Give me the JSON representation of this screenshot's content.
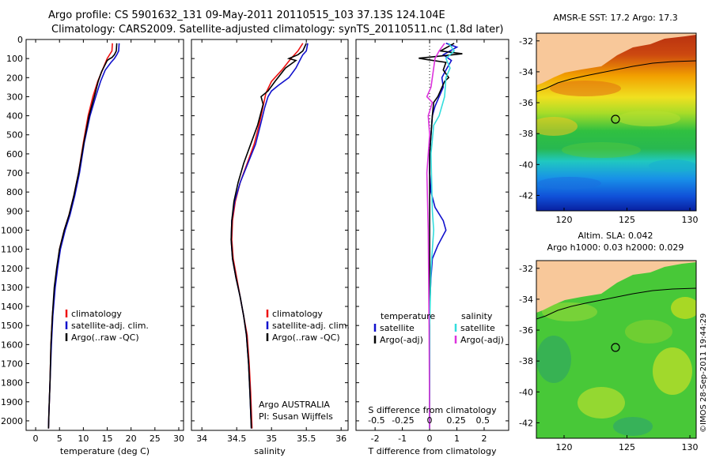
{
  "header": {
    "line1": "Argo profile: CS 5901632_131 09-May-2011 20110515_103 37.13S 124.104E",
    "line2": "Climatology: CARS2009. Satellite-adjusted climatology: synTS_20110511.nc (1.8d later)"
  },
  "colors": {
    "climatology": "#ee1111",
    "satellite": "#1111cc",
    "argo": "#000000",
    "s_satellite": "#33dddd",
    "s_argo": "#dd33dd",
    "land": "#f8c89a"
  },
  "chart_data": [
    {
      "id": "temperature",
      "type": "line",
      "xlabel": "temperature (deg C)",
      "ylabel": "",
      "xlim": [
        -2,
        31
      ],
      "ylim": [
        2050,
        0
      ],
      "xticks": [
        "0",
        "5",
        "10",
        "15",
        "20",
        "25",
        "30"
      ],
      "yticks": [
        "0",
        "100",
        "200",
        "300",
        "400",
        "500",
        "600",
        "700",
        "800",
        "900",
        "1000",
        "1100",
        "1200",
        "1300",
        "1400",
        "1500",
        "1600",
        "1700",
        "1800",
        "1900",
        "2000"
      ],
      "legend": [
        "climatology",
        "satellite-adj. clim.",
        "Argo(..raw -QC)"
      ],
      "series": [
        {
          "name": "climatology",
          "color": "#ee1111",
          "points": [
            [
              16.1,
              20
            ],
            [
              16.0,
              60
            ],
            [
              15.0,
              100
            ],
            [
              14.0,
              160
            ],
            [
              13.0,
              220
            ],
            [
              12.0,
              300
            ],
            [
              11.0,
              400
            ],
            [
              10.0,
              540
            ],
            [
              9.0,
              700
            ],
            [
              8.0,
              820
            ],
            [
              7.0,
              920
            ],
            [
              6.0,
              1000
            ],
            [
              5.0,
              1100
            ],
            [
              4.5,
              1200
            ],
            [
              4.0,
              1300
            ],
            [
              3.5,
              1450
            ],
            [
              3.2,
              1600
            ],
            [
              3.0,
              1800
            ],
            [
              2.8,
              1950
            ],
            [
              2.7,
              2040
            ]
          ]
        },
        {
          "name": "satellite-adj. clim.",
          "color": "#1111cc",
          "points": [
            [
              17.5,
              20
            ],
            [
              17.4,
              60
            ],
            [
              17.0,
              80
            ],
            [
              16.5,
              100
            ],
            [
              15.8,
              120
            ],
            [
              14.6,
              160
            ],
            [
              13.6,
              220
            ],
            [
              12.6,
              300
            ],
            [
              11.4,
              400
            ],
            [
              10.2,
              540
            ],
            [
              9.2,
              700
            ],
            [
              8.2,
              820
            ],
            [
              7.2,
              920
            ],
            [
              6.2,
              1000
            ],
            [
              5.2,
              1100
            ],
            [
              4.6,
              1200
            ],
            [
              4.1,
              1300
            ],
            [
              3.6,
              1450
            ],
            [
              3.3,
              1600
            ],
            [
              3.0,
              1800
            ],
            [
              2.8,
              1950
            ],
            [
              2.7,
              2040
            ]
          ]
        },
        {
          "name": "Argo(..raw -QC)",
          "color": "#000000",
          "points": [
            [
              17.0,
              20
            ],
            [
              16.9,
              60
            ],
            [
              16.5,
              80
            ],
            [
              16.0,
              95
            ],
            [
              15.6,
              100
            ],
            [
              15.0,
              110
            ],
            [
              14.4,
              140
            ],
            [
              13.8,
              170
            ],
            [
              13.1,
              220
            ],
            [
              12.3,
              300
            ],
            [
              11.2,
              400
            ],
            [
              10.1,
              540
            ],
            [
              9.0,
              700
            ],
            [
              8.0,
              820
            ],
            [
              7.0,
              920
            ],
            [
              6.0,
              1000
            ],
            [
              5.0,
              1100
            ],
            [
              4.4,
              1200
            ],
            [
              3.9,
              1300
            ],
            [
              3.5,
              1450
            ],
            [
              3.2,
              1600
            ],
            [
              3.0,
              1800
            ],
            [
              2.8,
              1950
            ],
            [
              2.7,
              2040
            ]
          ]
        }
      ]
    },
    {
      "id": "salinity",
      "type": "line",
      "xlabel": "salinity",
      "xlim": [
        33.85,
        36.1
      ],
      "ylim": [
        2050,
        0
      ],
      "xticks": [
        "34",
        "34.5",
        "35",
        "35.5",
        "36"
      ],
      "legend": [
        "climatology",
        "satellite-adj. clim.",
        "Argo(..raw -QC)"
      ],
      "annotations": [
        "Argo AUSTRALIA",
        "PI: Susan Wijffels"
      ],
      "series": [
        {
          "name": "climatology",
          "color": "#ee1111",
          "points": [
            [
              35.45,
              20
            ],
            [
              35.38,
              60
            ],
            [
              35.28,
              100
            ],
            [
              35.15,
              160
            ],
            [
              35.0,
              220
            ],
            [
              34.92,
              280
            ],
            [
              34.88,
              350
            ],
            [
              34.82,
              450
            ],
            [
              34.75,
              550
            ],
            [
              34.65,
              650
            ],
            [
              34.55,
              750
            ],
            [
              34.48,
              850
            ],
            [
              34.44,
              950
            ],
            [
              34.43,
              1050
            ],
            [
              34.45,
              1150
            ],
            [
              34.5,
              1250
            ],
            [
              34.55,
              1350
            ],
            [
              34.6,
              1450
            ],
            [
              34.65,
              1550
            ],
            [
              34.68,
              1700
            ],
            [
              34.7,
              1850
            ],
            [
              34.72,
              2040
            ]
          ]
        },
        {
          "name": "satellite-adj. clim.",
          "color": "#1111cc",
          "points": [
            [
              35.52,
              20
            ],
            [
              35.5,
              60
            ],
            [
              35.45,
              80
            ],
            [
              35.42,
              100
            ],
            [
              35.35,
              150
            ],
            [
              35.25,
              200
            ],
            [
              35.1,
              240
            ],
            [
              35.0,
              270
            ],
            [
              34.95,
              300
            ],
            [
              34.9,
              360
            ],
            [
              34.84,
              450
            ],
            [
              34.77,
              550
            ],
            [
              34.66,
              650
            ],
            [
              34.55,
              750
            ],
            [
              34.47,
              850
            ],
            [
              34.43,
              950
            ],
            [
              34.42,
              1050
            ],
            [
              34.44,
              1150
            ],
            [
              34.49,
              1250
            ],
            [
              34.55,
              1350
            ],
            [
              34.6,
              1450
            ],
            [
              34.64,
              1550
            ],
            [
              34.67,
              1700
            ],
            [
              34.69,
              1850
            ],
            [
              34.71,
              2040
            ]
          ]
        },
        {
          "name": "Argo(..raw -QC)",
          "color": "#000000",
          "points": [
            [
              35.5,
              20
            ],
            [
              35.45,
              60
            ],
            [
              35.38,
              80
            ],
            [
              35.25,
              100
            ],
            [
              35.35,
              110
            ],
            [
              35.2,
              150
            ],
            [
              35.05,
              220
            ],
            [
              34.95,
              270
            ],
            [
              34.85,
              300
            ],
            [
              34.88,
              340
            ],
            [
              34.8,
              450
            ],
            [
              34.7,
              550
            ],
            [
              34.6,
              650
            ],
            [
              34.52,
              750
            ],
            [
              34.46,
              850
            ],
            [
              34.43,
              950
            ],
            [
              34.42,
              1050
            ],
            [
              34.44,
              1150
            ],
            [
              34.49,
              1250
            ],
            [
              34.55,
              1350
            ],
            [
              34.6,
              1450
            ],
            [
              34.64,
              1550
            ],
            [
              34.67,
              1700
            ],
            [
              34.69,
              1850
            ],
            [
              34.71,
              2040
            ]
          ]
        }
      ]
    },
    {
      "id": "difference",
      "type": "line",
      "xlabel": "T difference from climatology",
      "x2label": "S difference from climatology",
      "xlim": [
        -2.7,
        2.9
      ],
      "ylim": [
        2050,
        0
      ],
      "xticks": [
        "-2",
        "-1",
        "0",
        "1",
        "2"
      ],
      "x2ticks": [
        "-0.5",
        "-0.25",
        "0",
        "0.25",
        "0.5"
      ],
      "legend_left": [
        "temperature",
        "satellite",
        "Argo(-adj)"
      ],
      "legend_right": [
        "salinity",
        "satellite",
        "Argo(-adj)"
      ],
      "series": [
        {
          "name": "T satellite",
          "color": "#1111cc",
          "points": [
            [
              0.6,
              20
            ],
            [
              1.0,
              40
            ],
            [
              0.5,
              80
            ],
            [
              0.8,
              110
            ],
            [
              0.6,
              160
            ],
            [
              0.45,
              200
            ],
            [
              0.5,
              250
            ],
            [
              0.35,
              300
            ],
            [
              0.2,
              350
            ],
            [
              0.1,
              400
            ],
            [
              0.05,
              500
            ],
            [
              0.0,
              600
            ],
            [
              0.0,
              700
            ],
            [
              0.05,
              800
            ],
            [
              0.2,
              880
            ],
            [
              0.5,
              950
            ],
            [
              0.6,
              1000
            ],
            [
              0.3,
              1080
            ],
            [
              0.1,
              1150
            ],
            [
              0.05,
              1250
            ],
            [
              0.0,
              1400
            ],
            [
              0.0,
              2040
            ]
          ]
        },
        {
          "name": "T Argo(-adj)",
          "color": "#000000",
          "points": [
            [
              0.9,
              20
            ],
            [
              0.4,
              60
            ],
            [
              1.2,
              75
            ],
            [
              0.2,
              90
            ],
            [
              -0.4,
              98
            ],
            [
              -0.1,
              105
            ],
            [
              0.6,
              120
            ],
            [
              0.5,
              160
            ],
            [
              0.7,
              200
            ],
            [
              0.55,
              220
            ],
            [
              0.3,
              300
            ],
            [
              0.15,
              330
            ],
            [
              0.1,
              400
            ],
            [
              0.0,
              600
            ],
            [
              0.0,
              2040
            ]
          ]
        },
        {
          "name": "S satellite",
          "color": "#33dddd",
          "points": [
            [
              0.7,
              20
            ],
            [
              0.9,
              60
            ],
            [
              0.6,
              100
            ],
            [
              0.75,
              150
            ],
            [
              0.6,
              200
            ],
            [
              0.55,
              300
            ],
            [
              0.35,
              400
            ],
            [
              0.15,
              450
            ],
            [
              0.05,
              600
            ],
            [
              0.1,
              900
            ],
            [
              0.15,
              1000
            ],
            [
              0.05,
              1200
            ],
            [
              0.0,
              1500
            ],
            [
              0.0,
              2040
            ]
          ]
        },
        {
          "name": "S Argo(-adj)",
          "color": "#dd33dd",
          "points": [
            [
              0.55,
              20
            ],
            [
              0.35,
              60
            ],
            [
              0.2,
              100
            ],
            [
              0.05,
              250
            ],
            [
              -0.1,
              300
            ],
            [
              0.1,
              330
            ],
            [
              -0.05,
              400
            ],
            [
              0.0,
              500
            ],
            [
              -0.1,
              700
            ],
            [
              -0.05,
              1000
            ],
            [
              -0.02,
              1500
            ],
            [
              0.0,
              2040
            ]
          ]
        }
      ]
    },
    {
      "id": "sst_map",
      "type": "heatmap",
      "title": "AMSR-E SST: 17.2 Argo: 17.3",
      "xticks": [
        "120",
        "125",
        "130"
      ],
      "yticks": [
        "-32",
        "-34",
        "-36",
        "-38",
        "-40",
        "-42"
      ],
      "xlim": [
        117.8,
        130.5
      ],
      "ylim": [
        -43,
        -31.5
      ],
      "marker": {
        "lon": 124.104,
        "lat": -37.13
      }
    },
    {
      "id": "sla_map",
      "type": "heatmap",
      "title_line1": "Altim. SLA: 0.042",
      "title_line2": "Argo h1000: 0.03 h2000: 0.029",
      "xticks": [
        "120",
        "125",
        "130"
      ],
      "yticks": [
        "-32",
        "-34",
        "-36",
        "-38",
        "-40",
        "-42"
      ],
      "xlim": [
        117.8,
        130.5
      ],
      "ylim": [
        -43,
        -31.5
      ],
      "marker": {
        "lon": 124.104,
        "lat": -37.13
      }
    }
  ],
  "footer": {
    "stamp": "©IMOS 28-Sep-2011 19:44:29"
  }
}
